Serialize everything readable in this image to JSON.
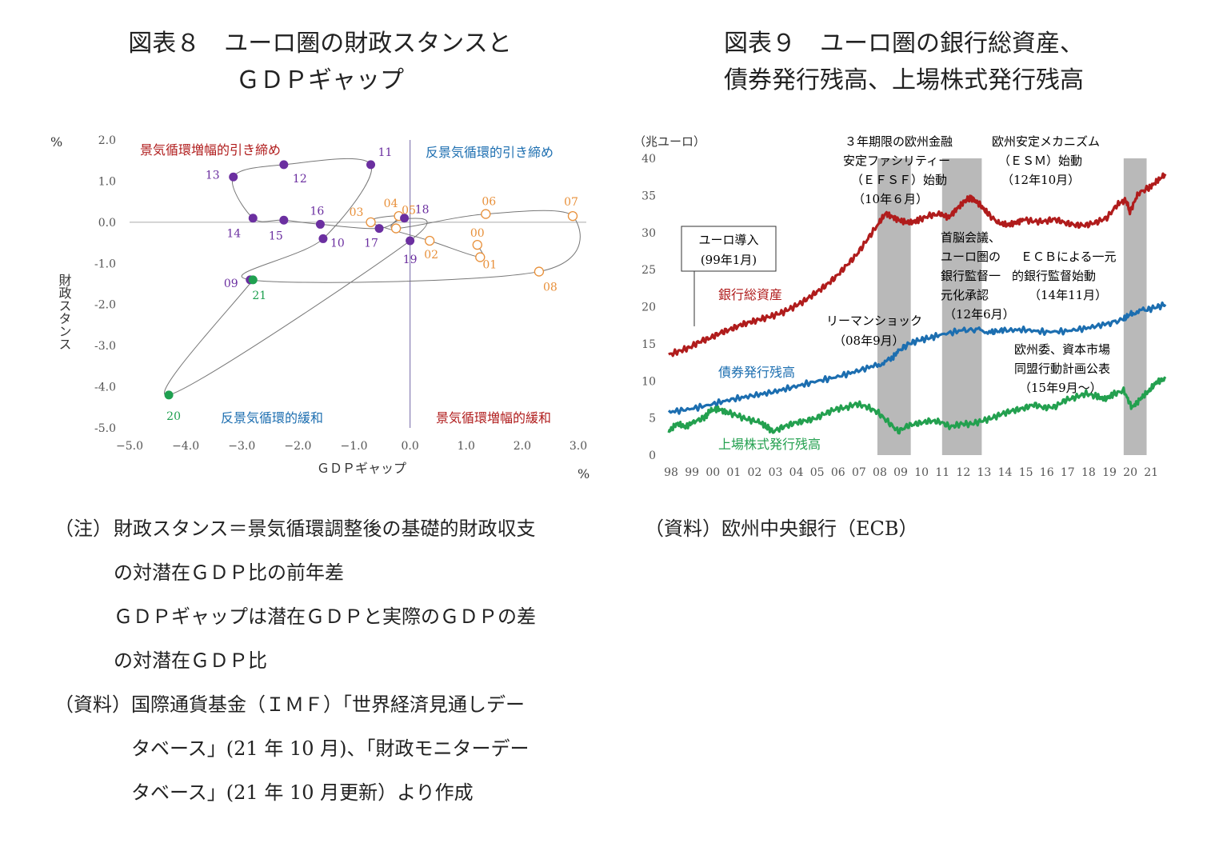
{
  "colors": {
    "purple": "#6b2fa0",
    "orange": "#e8903a",
    "green": "#1fa050",
    "red": "#b01c1c",
    "blue": "#1c6eb0",
    "equity": "#23a04f",
    "shade": "#b9b9b9",
    "axis": "#555555",
    "label_red": "#b01c1c",
    "label_blue": "#1c6eb0"
  },
  "titles": {
    "fig8_line1": "図表８　ユーロ圏の財政スタンスと",
    "fig8_line2": "ＧＤＰギャップ",
    "fig9_line1": "図表９　ユーロ圏の銀行総資産、",
    "fig9_line2": "債券発行残高、上場株式発行残高"
  },
  "chart_data": [
    {
      "type": "scatter",
      "title": "図表８　ユーロ圏の財政スタンスとＧＤＰギャップ",
      "xlabel": "ＧＤＰギャップ",
      "ylabel": "財政スタンス",
      "x_unit": "%",
      "y_unit": "%",
      "xlim": [
        -5.0,
        3.0
      ],
      "ylim": [
        -5.0,
        2.0
      ],
      "x_ticks": [
        "−5.0",
        "−4.0",
        "−3.0",
        "−2.0",
        "−1.0",
        "0.0",
        "1.0",
        "2.0",
        "3.0"
      ],
      "y_ticks": [
        "2.0",
        "1.0",
        "0.0",
        "-1.0",
        "-2.0",
        "-3.0",
        "-4.0",
        "-5.0"
      ],
      "quadrants": [
        "景気循環増幅的引き締め",
        "反景気循環的引き締め",
        "反景気循環的緩和",
        "景気循環増幅的緩和"
      ],
      "points": [
        {
          "label": "00",
          "x": 1.2,
          "y": -0.55,
          "group": "orange"
        },
        {
          "label": "01",
          "x": 1.25,
          "y": -0.85,
          "group": "orange"
        },
        {
          "label": "02",
          "x": 0.35,
          "y": -0.45,
          "group": "orange"
        },
        {
          "label": "03",
          "x": -0.7,
          "y": 0.0,
          "group": "orange"
        },
        {
          "label": "04",
          "x": -0.2,
          "y": 0.15,
          "group": "orange"
        },
        {
          "label": "05",
          "x": -0.25,
          "y": -0.15,
          "group": "orange"
        },
        {
          "label": "06",
          "x": 1.35,
          "y": 0.2,
          "group": "orange"
        },
        {
          "label": "07",
          "x": 2.9,
          "y": 0.15,
          "group": "orange"
        },
        {
          "label": "08",
          "x": 2.3,
          "y": -1.2,
          "group": "orange"
        },
        {
          "label": "09",
          "x": -2.85,
          "y": -1.4,
          "group": "purple"
        },
        {
          "label": "10",
          "x": -1.55,
          "y": -0.4,
          "group": "purple"
        },
        {
          "label": "11",
          "x": -0.7,
          "y": 1.4,
          "group": "purple"
        },
        {
          "label": "12",
          "x": -2.25,
          "y": 1.4,
          "group": "purple"
        },
        {
          "label": "13",
          "x": -3.15,
          "y": 1.1,
          "group": "purple"
        },
        {
          "label": "14",
          "x": -2.8,
          "y": 0.1,
          "group": "purple"
        },
        {
          "label": "15",
          "x": -2.25,
          "y": 0.05,
          "group": "purple"
        },
        {
          "label": "16",
          "x": -1.6,
          "y": -0.05,
          "group": "purple"
        },
        {
          "label": "17",
          "x": -0.55,
          "y": -0.15,
          "group": "purple"
        },
        {
          "label": "18",
          "x": -0.1,
          "y": 0.1,
          "group": "purple"
        },
        {
          "label": "19",
          "x": 0.0,
          "y": -0.45,
          "group": "purple"
        },
        {
          "label": "20",
          "x": -4.3,
          "y": -4.2,
          "group": "green"
        },
        {
          "label": "21",
          "x": -2.8,
          "y": -1.4,
          "group": "green"
        }
      ]
    },
    {
      "type": "line",
      "title": "図表９　ユーロ圏の銀行総資産、債券発行残高、上場株式発行残高",
      "y_unit": "（兆ユーロ）",
      "ylim": [
        0,
        40
      ],
      "y_ticks": [
        "0",
        "5",
        "10",
        "15",
        "20",
        "25",
        "30",
        "35",
        "40"
      ],
      "x_ticks": [
        "98",
        "99",
        "00",
        "01",
        "02",
        "03",
        "04",
        "05",
        "06",
        "07",
        "08",
        "09",
        "10",
        "11",
        "12",
        "13",
        "14",
        "15",
        "16",
        "17",
        "18",
        "19",
        "20",
        "21"
      ],
      "x_range": [
        1998.0,
        2021.8
      ],
      "shaded_periods": [
        [
          2008.0,
          2009.6
        ],
        [
          2011.1,
          2013.0
        ],
        [
          2019.8,
          2020.9
        ]
      ],
      "series": [
        {
          "name": "銀行総資産",
          "color": "red",
          "points": [
            [
              1998.0,
              13.5
            ],
            [
              1998.5,
              14.0
            ],
            [
              1999.0,
              14.5
            ],
            [
              1999.5,
              15.3
            ],
            [
              2000.0,
              15.8
            ],
            [
              2000.5,
              16.5
            ],
            [
              2001.0,
              17.0
            ],
            [
              2001.5,
              17.6
            ],
            [
              2002.0,
              18.0
            ],
            [
              2002.5,
              18.4
            ],
            [
              2003.0,
              18.8
            ],
            [
              2003.5,
              19.3
            ],
            [
              2004.0,
              20.0
            ],
            [
              2004.5,
              20.8
            ],
            [
              2005.0,
              21.8
            ],
            [
              2005.5,
              22.8
            ],
            [
              2006.0,
              24.0
            ],
            [
              2006.5,
              25.5
            ],
            [
              2007.0,
              27.0
            ],
            [
              2007.5,
              29.0
            ],
            [
              2008.0,
              31.0
            ],
            [
              2008.4,
              32.6
            ],
            [
              2008.8,
              32.0
            ],
            [
              2009.2,
              31.5
            ],
            [
              2009.6,
              31.3
            ],
            [
              2010.0,
              31.7
            ],
            [
              2010.5,
              32.3
            ],
            [
              2011.0,
              32.5
            ],
            [
              2011.4,
              32.0
            ],
            [
              2011.8,
              33.2
            ],
            [
              2012.2,
              34.3
            ],
            [
              2012.5,
              34.7
            ],
            [
              2012.9,
              33.8
            ],
            [
              2013.3,
              32.5
            ],
            [
              2013.8,
              31.3
            ],
            [
              2014.2,
              31.0
            ],
            [
              2014.6,
              31.3
            ],
            [
              2015.0,
              31.8
            ],
            [
              2015.5,
              31.5
            ],
            [
              2016.0,
              31.5
            ],
            [
              2016.5,
              31.8
            ],
            [
              2017.0,
              31.3
            ],
            [
              2017.5,
              31.0
            ],
            [
              2018.0,
              31.0
            ],
            [
              2018.5,
              31.4
            ],
            [
              2019.0,
              32.0
            ],
            [
              2019.5,
              33.8
            ],
            [
              2019.9,
              34.4
            ],
            [
              2020.1,
              32.8
            ],
            [
              2020.5,
              35.3
            ],
            [
              2021.0,
              36.0
            ],
            [
              2021.4,
              36.9
            ],
            [
              2021.8,
              37.9
            ]
          ]
        },
        {
          "name": "債券発行残高",
          "color": "blue",
          "points": [
            [
              1998.0,
              5.8
            ],
            [
              1999.0,
              6.2
            ],
            [
              2000.0,
              6.8
            ],
            [
              2001.0,
              7.5
            ],
            [
              2002.0,
              8.0
            ],
            [
              2003.0,
              8.5
            ],
            [
              2004.0,
              9.2
            ],
            [
              2005.0,
              9.9
            ],
            [
              2006.0,
              10.5
            ],
            [
              2007.0,
              11.3
            ],
            [
              2008.0,
              12.2
            ],
            [
              2008.6,
              12.8
            ],
            [
              2009.0,
              14.0
            ],
            [
              2009.5,
              15.0
            ],
            [
              2010.0,
              15.5
            ],
            [
              2010.5,
              15.8
            ],
            [
              2011.0,
              16.2
            ],
            [
              2012.0,
              16.8
            ],
            [
              2012.8,
              16.9
            ],
            [
              2013.5,
              16.6
            ],
            [
              2014.0,
              16.8
            ],
            [
              2015.0,
              16.9
            ],
            [
              2016.0,
              16.6
            ],
            [
              2017.0,
              16.7
            ],
            [
              2018.0,
              17.1
            ],
            [
              2019.0,
              17.7
            ],
            [
              2019.8,
              18.3
            ],
            [
              2020.2,
              19.2
            ],
            [
              2020.8,
              19.5
            ],
            [
              2021.3,
              19.9
            ],
            [
              2021.8,
              20.3
            ]
          ]
        },
        {
          "name": "上場株式発行残高",
          "color": "equity",
          "points": [
            [
              1998.0,
              3.2
            ],
            [
              1998.4,
              4.2
            ],
            [
              1998.8,
              3.8
            ],
            [
              1999.2,
              4.5
            ],
            [
              1999.7,
              5.0
            ],
            [
              2000.0,
              6.0
            ],
            [
              2000.4,
              6.2
            ],
            [
              2000.8,
              5.8
            ],
            [
              2001.3,
              5.3
            ],
            [
              2001.8,
              4.8
            ],
            [
              2002.3,
              4.5
            ],
            [
              2002.7,
              3.8
            ],
            [
              2003.0,
              3.2
            ],
            [
              2003.5,
              3.8
            ],
            [
              2004.0,
              4.3
            ],
            [
              2004.5,
              4.6
            ],
            [
              2005.0,
              4.9
            ],
            [
              2005.5,
              5.6
            ],
            [
              2006.0,
              6.2
            ],
            [
              2006.5,
              6.4
            ],
            [
              2007.0,
              6.9
            ],
            [
              2007.5,
              6.5
            ],
            [
              2008.0,
              5.8
            ],
            [
              2008.5,
              4.5
            ],
            [
              2009.0,
              3.2
            ],
            [
              2009.5,
              4.0
            ],
            [
              2010.0,
              4.3
            ],
            [
              2010.5,
              4.6
            ],
            [
              2011.0,
              4.5
            ],
            [
              2011.5,
              3.8
            ],
            [
              2012.0,
              4.2
            ],
            [
              2012.5,
              4.2
            ],
            [
              2013.0,
              4.6
            ],
            [
              2013.5,
              5.0
            ],
            [
              2014.0,
              5.6
            ],
            [
              2014.5,
              6.0
            ],
            [
              2015.0,
              6.3
            ],
            [
              2015.5,
              6.8
            ],
            [
              2016.0,
              6.4
            ],
            [
              2016.5,
              6.5
            ],
            [
              2017.0,
              7.4
            ],
            [
              2017.5,
              7.8
            ],
            [
              2018.0,
              8.3
            ],
            [
              2018.5,
              7.9
            ],
            [
              2018.9,
              7.5
            ],
            [
              2019.3,
              8.2
            ],
            [
              2019.8,
              8.7
            ],
            [
              2020.2,
              6.4
            ],
            [
              2020.6,
              7.6
            ],
            [
              2021.0,
              8.6
            ],
            [
              2021.4,
              9.9
            ],
            [
              2021.8,
              10.3
            ]
          ]
        }
      ],
      "annotations": {
        "euro": [
          "ユーロ導入",
          "(99年1月)"
        ],
        "efsf": [
          "３年期限の欧州金融",
          "安定ファシリティー",
          "（ＥＦＳＦ）始動",
          "（10年６月）"
        ],
        "esm": [
          "欧州安定メカニズム",
          "（ＥＳＭ）始動",
          "（12年10月）"
        ],
        "lehman": [
          "リーマンショック",
          "（08年9月）"
        ],
        "summit": [
          "首脳会議、",
          "ユーロ圏の",
          "銀行監督一",
          "元化承認",
          "（12年6月）"
        ],
        "ecb": [
          "ＥＣＢによる一元",
          "的銀行監督始動",
          "（14年11月）"
        ],
        "cmu": [
          "欧州委、資本市場",
          "同盟行動計画公表",
          "（15年9月～）"
        ]
      }
    }
  ],
  "notes": {
    "fig8_note_label": "（注）",
    "fig8_note_l1": "財政スタンス＝景気循環調整後の基礎的財政収支",
    "fig8_note_l2": "の対潜在ＧＤＰ比の前年差",
    "fig8_note_l3": "ＧＤＰギャップは潜在ＧＤＰと実際のＧＤＰの差",
    "fig8_note_l4": "の対潜在ＧＤＰ比",
    "fig8_src_label": "（資料）",
    "fig8_src_l1": "国際通貨基金（ＩＭＦ）「世界経済見通しデー",
    "fig8_src_l2": "タベース」(21 年 10 月)、「財政モニターデー",
    "fig8_src_l3": "タベース」(21 年 10 月更新）より作成",
    "fig9_src": "（資料）欧州中央銀行（ECB）"
  }
}
